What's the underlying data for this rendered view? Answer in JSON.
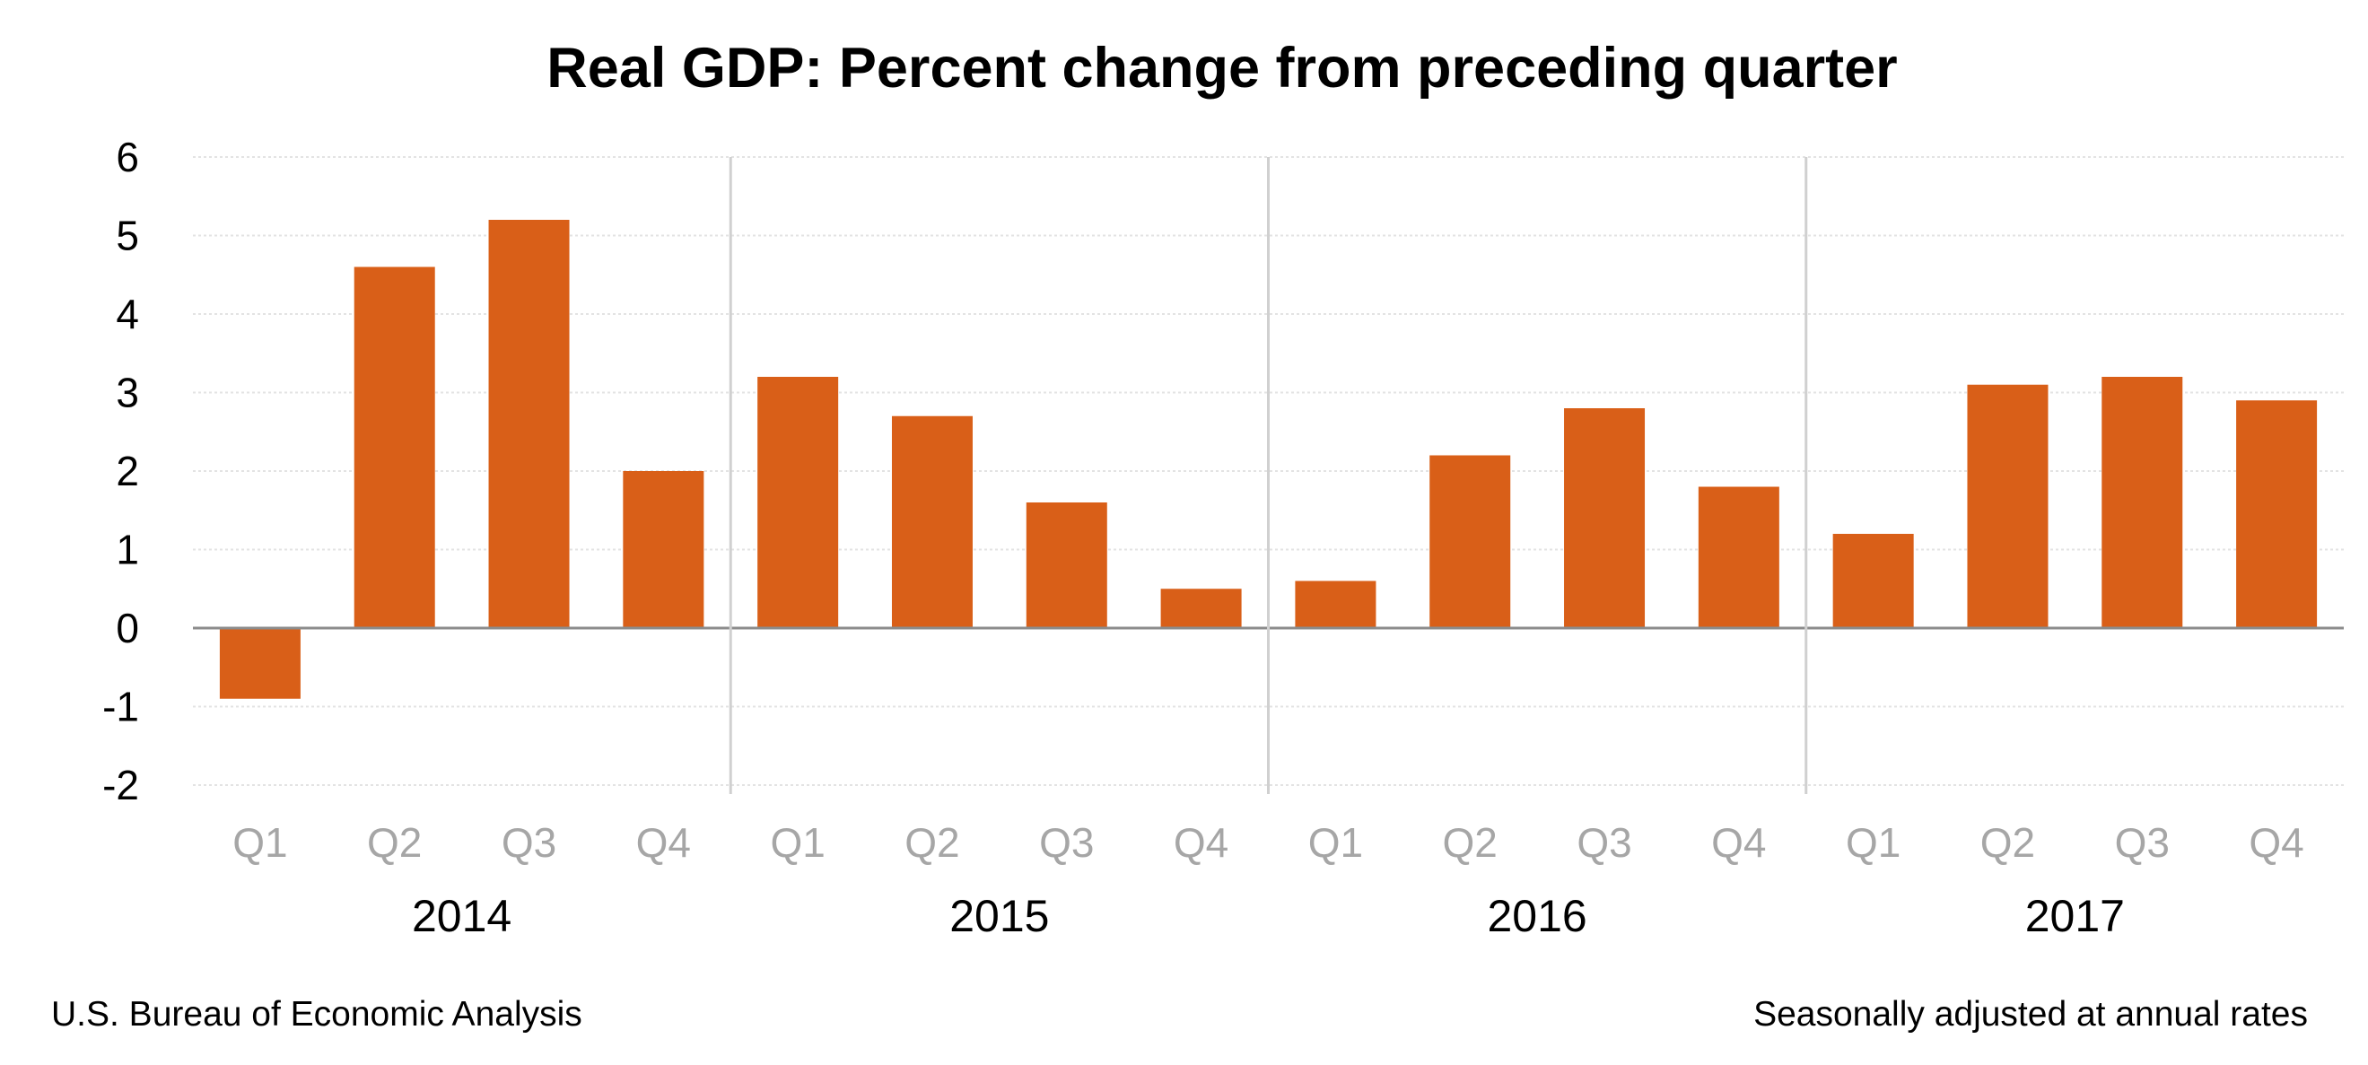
{
  "chart_data": {
    "type": "bar",
    "title": "Real GDP:  Percent change from preceding quarter",
    "xlabel": "",
    "ylabel": "",
    "ylim": [
      -2,
      6
    ],
    "yticks": [
      "6",
      "5",
      "4",
      "3",
      "2",
      "1",
      "0",
      "-1",
      "-2"
    ],
    "categories": [
      "Q1",
      "Q2",
      "Q3",
      "Q4",
      "Q1",
      "Q2",
      "Q3",
      "Q4",
      "Q1",
      "Q2",
      "Q3",
      "Q4",
      "Q1",
      "Q2",
      "Q3",
      "Q4"
    ],
    "groups": [
      {
        "label": "2014",
        "start": 0,
        "end": 3
      },
      {
        "label": "2015",
        "start": 4,
        "end": 7
      },
      {
        "label": "2016",
        "start": 8,
        "end": 11
      },
      {
        "label": "2017",
        "start": 12,
        "end": 15
      }
    ],
    "values": [
      -0.9,
      4.6,
      5.2,
      2.0,
      3.2,
      2.7,
      1.6,
      0.5,
      0.6,
      2.2,
      2.8,
      1.8,
      1.2,
      3.1,
      3.2,
      2.9
    ],
    "grid": true,
    "bar_color": "#d95f18"
  },
  "footer": {
    "source": "U.S. Bureau of Economic Analysis",
    "note": "Seasonally adjusted at annual rates"
  }
}
